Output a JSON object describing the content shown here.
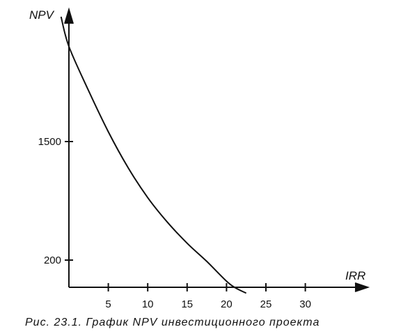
{
  "chart_data": {
    "type": "line",
    "title": "",
    "xlabel": "IRR",
    "ylabel": "NPV",
    "x_ticks": [
      5,
      10,
      15,
      20,
      25,
      30
    ],
    "y_ticks": [
      200,
      1500
    ],
    "xlim": [
      0,
      36
    ],
    "series": [
      {
        "name": "",
        "x": [
          -1,
          0,
          2.5,
          5,
          7.5,
          10,
          12.5,
          15,
          17.5,
          20,
          21.1,
          22.5
        ],
        "y": [
          2840,
          2520,
          2045,
          1605,
          1215,
          885,
          615,
          385,
          190,
          45,
          -5,
          -70
        ]
      }
    ],
    "grid": false,
    "legend": "none"
  },
  "caption": "Рис. 23.1. График NPV инвестиционного проекта"
}
